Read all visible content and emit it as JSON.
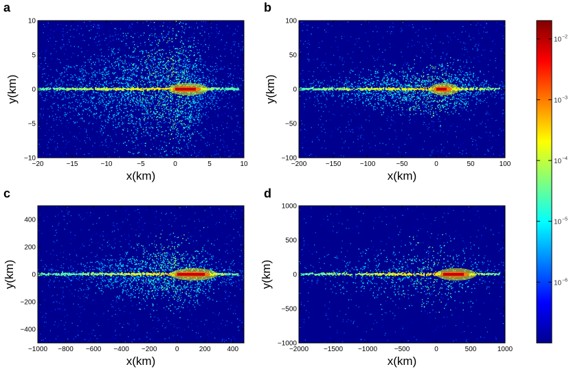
{
  "chart_data": [
    {
      "panel": "a",
      "type": "heatmap",
      "xlabel": "x(km)",
      "ylabel": "y(km)",
      "xlim": [
        -20,
        10
      ],
      "ylim": [
        -10,
        10
      ],
      "xticks": [
        -20,
        -15,
        -10,
        -5,
        0,
        5,
        10
      ],
      "yticks": [
        -10,
        -5,
        0,
        5,
        10
      ],
      "xtick_labels": [
        "−20",
        "−15",
        "−10",
        "−5",
        "0",
        "5",
        "10"
      ],
      "ytick_labels": [
        "−10",
        "−5",
        "0",
        "5",
        "10"
      ],
      "hotspot_x": [
        0,
        3
      ],
      "spread_left": 20,
      "spread_right": 7,
      "halo_height": 8,
      "density": "dense"
    },
    {
      "panel": "b",
      "type": "heatmap",
      "xlabel": "x(km)",
      "ylabel": "y(km)",
      "xlim": [
        -200,
        100
      ],
      "ylim": [
        -100,
        100
      ],
      "xticks": [
        -200,
        -150,
        -100,
        -50,
        0,
        50,
        100
      ],
      "yticks": [
        -100,
        -50,
        0,
        50,
        100
      ],
      "xtick_labels": [
        "−200",
        "−150",
        "−100",
        "−50",
        "0",
        "50",
        "100"
      ],
      "ytick_labels": [
        "−100",
        "−50",
        "0",
        "50",
        "100"
      ],
      "hotspot_x": [
        0,
        15
      ],
      "spread_left": 200,
      "spread_right": 95,
      "halo_height": 35,
      "density": "medium"
    },
    {
      "panel": "c",
      "type": "heatmap",
      "xlabel": "x(km)",
      "ylabel": "y(km)",
      "xlim": [
        -1000,
        480
      ],
      "ylim": [
        -500,
        500
      ],
      "xticks": [
        -1000,
        -800,
        -600,
        -400,
        -200,
        0,
        200,
        400
      ],
      "yticks": [
        -400,
        -200,
        0,
        200,
        400
      ],
      "xtick_labels": [
        "−1000",
        "−800",
        "−600",
        "−400",
        "−200",
        "0",
        "200",
        "400"
      ],
      "ytick_labels": [
        "−400",
        "−200",
        "0",
        "200",
        "400"
      ],
      "hotspot_x": [
        0,
        200
      ],
      "spread_left": 800,
      "spread_right": 480,
      "halo_height": 220,
      "density": "medium"
    },
    {
      "panel": "d",
      "type": "heatmap",
      "xlabel": "x(km)",
      "ylabel": "y(km)",
      "xlim": [
        -2000,
        1000
      ],
      "ylim": [
        -1000,
        1000
      ],
      "xticks": [
        -2000,
        -1500,
        -1000,
        -500,
        0,
        500,
        1000
      ],
      "yticks": [
        -1000,
        -500,
        0,
        500,
        1000
      ],
      "xtick_labels": [
        "−2000",
        "−1500",
        "−1000",
        "−500",
        "0",
        "500",
        "1000"
      ],
      "ytick_labels": [
        "−1000",
        "−500",
        "0",
        "500",
        "1000"
      ],
      "hotspot_x": [
        100,
        400
      ],
      "spread_left": 1950,
      "spread_right": 950,
      "halo_height": 500,
      "density": "sparse"
    }
  ],
  "colorbar": {
    "scale": "log",
    "range": [
      1e-07,
      0.02
    ],
    "ticks": [
      {
        "value": 0.01,
        "base": "10",
        "exp": "−2"
      },
      {
        "value": 0.001,
        "base": "10",
        "exp": "−3"
      },
      {
        "value": 0.0001,
        "base": "10",
        "exp": "−4"
      },
      {
        "value": 1e-05,
        "base": "10",
        "exp": "−5"
      },
      {
        "value": 1e-06,
        "base": "10",
        "exp": "−6"
      }
    ],
    "colormap": "jet"
  },
  "colors": {
    "background": "#00008f",
    "axis": "#000000"
  }
}
